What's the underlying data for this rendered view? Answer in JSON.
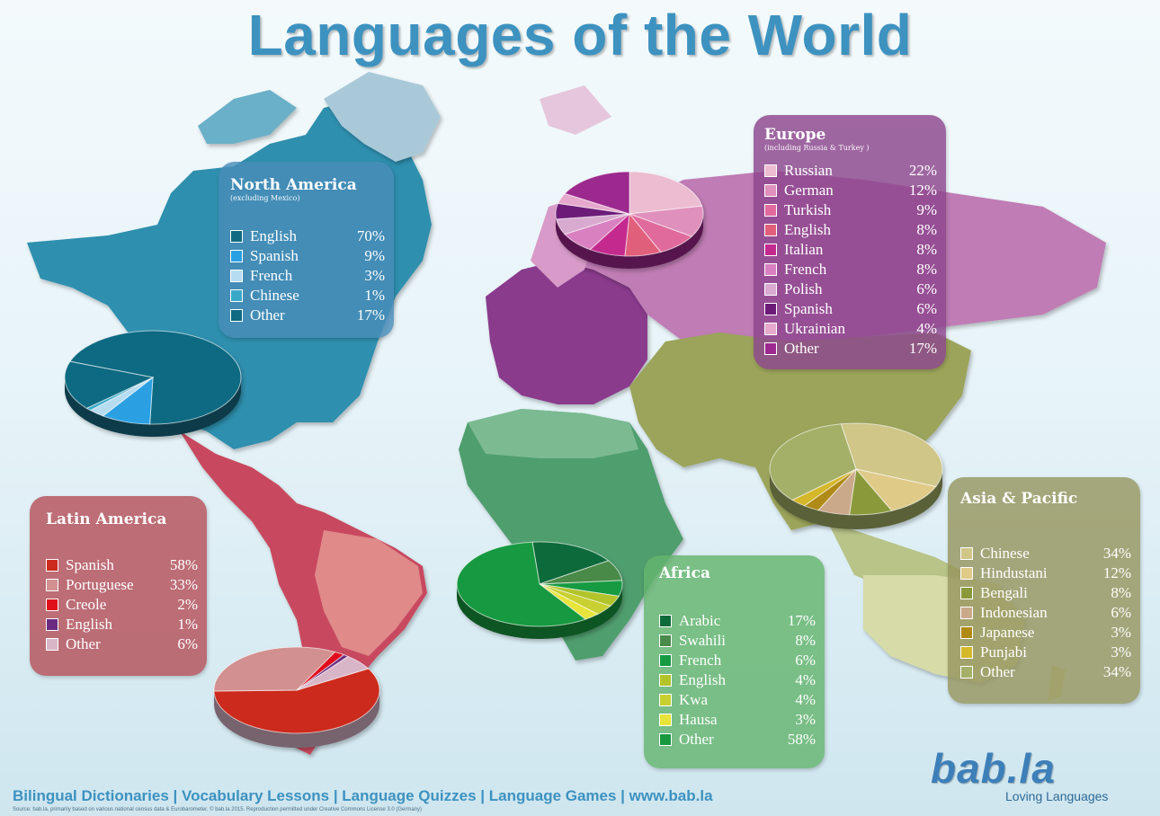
{
  "title": "Languages of the World",
  "footer": "Bilingual Dictionaries | Vocabulary Lessons | Language Quizzes | Language Games | www.bab.la",
  "source": "Source: bab.la, primarily based on various national census data & Eurobarometer.  © bab.la 2015. Reproduction permitted under Creative Commons License 3.0 (Germany)",
  "logo": {
    "brand": "bab.la",
    "tagline": "Loving Languages"
  },
  "chart_data": [
    {
      "type": "pie",
      "title": "North America",
      "subtitle": "(excluding Mexico)",
      "categories": [
        "English",
        "Spanish",
        "French",
        "Chinese",
        "Other"
      ],
      "values": [
        70,
        9,
        3,
        1,
        17
      ],
      "labels": [
        "70%",
        "9%",
        "3%",
        "1%",
        "17%"
      ],
      "colors": [
        "#0f6a82",
        "#2aa0e3",
        "#b6dcf0",
        "#3aa9c9",
        "#0f6a82"
      ]
    },
    {
      "type": "pie",
      "title": "Latin America",
      "subtitle": "",
      "categories": [
        "Spanish",
        "Portuguese",
        "Creole",
        "English",
        "Other"
      ],
      "values": [
        58,
        33,
        2,
        1,
        6
      ],
      "labels": [
        "58%",
        "33%",
        "2%",
        "1%",
        "6%"
      ],
      "colors": [
        "#cc2a1c",
        "#d29090",
        "#e0101a",
        "#6a2a82",
        "#d8b6c8"
      ]
    },
    {
      "type": "pie",
      "title": "Europe",
      "subtitle": "(including Russia & Turkey )",
      "categories": [
        "Russian",
        "German",
        "Turkish",
        "English",
        "Italian",
        "French",
        "Polish",
        "Spanish",
        "Ukrainian",
        "Other"
      ],
      "values": [
        22,
        12,
        9,
        8,
        8,
        8,
        6,
        6,
        4,
        17
      ],
      "labels": [
        "22%",
        "12%",
        "9%",
        "8%",
        "8%",
        "8%",
        "6%",
        "6%",
        "4%",
        "17%"
      ],
      "colors": [
        "#ecbcd0",
        "#e090bc",
        "#e06a9c",
        "#e0607c",
        "#c42a8e",
        "#d880c0",
        "#d8aad0",
        "#6c1a78",
        "#e6a8cc",
        "#9c2a8e"
      ]
    },
    {
      "type": "pie",
      "title": "Africa",
      "subtitle": "",
      "categories": [
        "Arabic",
        "Swahili",
        "French",
        "English",
        "Kwa",
        "Hausa",
        "Other"
      ],
      "values": [
        17,
        8,
        6,
        4,
        4,
        3,
        58
      ],
      "labels": [
        "17%",
        "8%",
        "6%",
        "4%",
        "4%",
        "3%",
        "58%"
      ],
      "colors": [
        "#0e6a3a",
        "#4a8a4a",
        "#169a42",
        "#b2c42a",
        "#c8d030",
        "#e8e43a",
        "#19993f"
      ]
    },
    {
      "type": "pie",
      "title": "Asia & Pacific",
      "subtitle": "",
      "categories": [
        "Chinese",
        "Hindustani",
        "Bengali",
        "Indonesian",
        "Japanese",
        "Punjabi",
        "Other"
      ],
      "values": [
        34,
        12,
        8,
        6,
        3,
        3,
        34
      ],
      "labels": [
        "34%",
        "12%",
        "8%",
        "6%",
        "3%",
        "3%",
        "34%"
      ],
      "colors": [
        "#cfc688",
        "#e0ca88",
        "#8a9a3a",
        "#caa88a",
        "#b08a12",
        "#d4b82a",
        "#a4b068"
      ]
    }
  ]
}
